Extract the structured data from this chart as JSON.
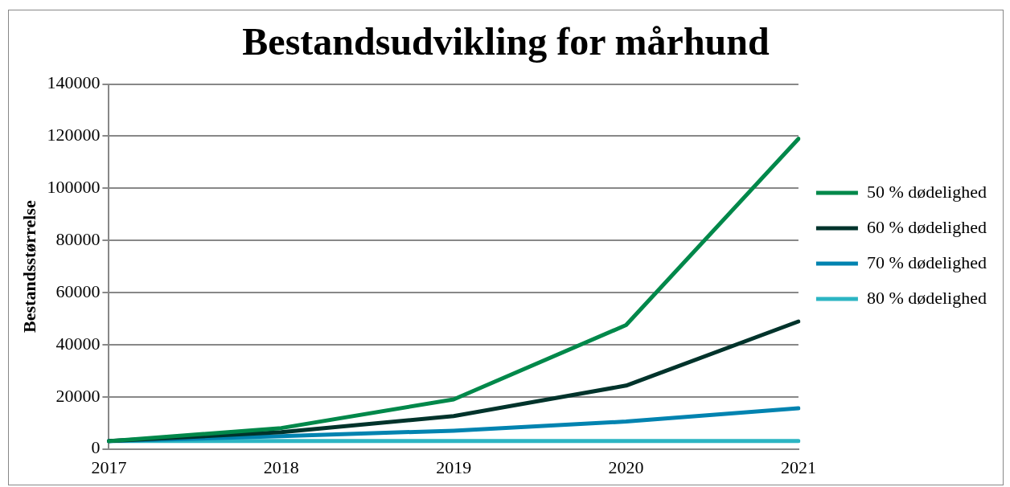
{
  "chart_data": {
    "type": "line",
    "title": "Bestandsudvikling for mårhund",
    "ylabel": "Bestandsstørrelse",
    "categories": [
      "2017",
      "2018",
      "2019",
      "2020",
      "2021"
    ],
    "series": [
      {
        "name": "50 % dødelighed",
        "color": "#00884a",
        "values": [
          3000,
          8000,
          19000,
          47500,
          119000
        ]
      },
      {
        "name": "60 % dødelighed",
        "color": "#00332b",
        "values": [
          3000,
          6400,
          12600,
          24300,
          48900
        ]
      },
      {
        "name": "70 % dødelighed",
        "color": "#0083b0",
        "values": [
          3000,
          4900,
          7000,
          10500,
          15600
        ]
      },
      {
        "name": "80 % dødelighed",
        "color": "#2cb5c3",
        "values": [
          3000,
          3000,
          3000,
          3000,
          3000
        ]
      }
    ],
    "ylim": [
      0,
      140000
    ],
    "yticks": [
      0,
      20000,
      40000,
      60000,
      80000,
      100000,
      120000,
      140000
    ],
    "grid": "y",
    "legend": "right",
    "marker": "none",
    "line_style": "solid"
  }
}
